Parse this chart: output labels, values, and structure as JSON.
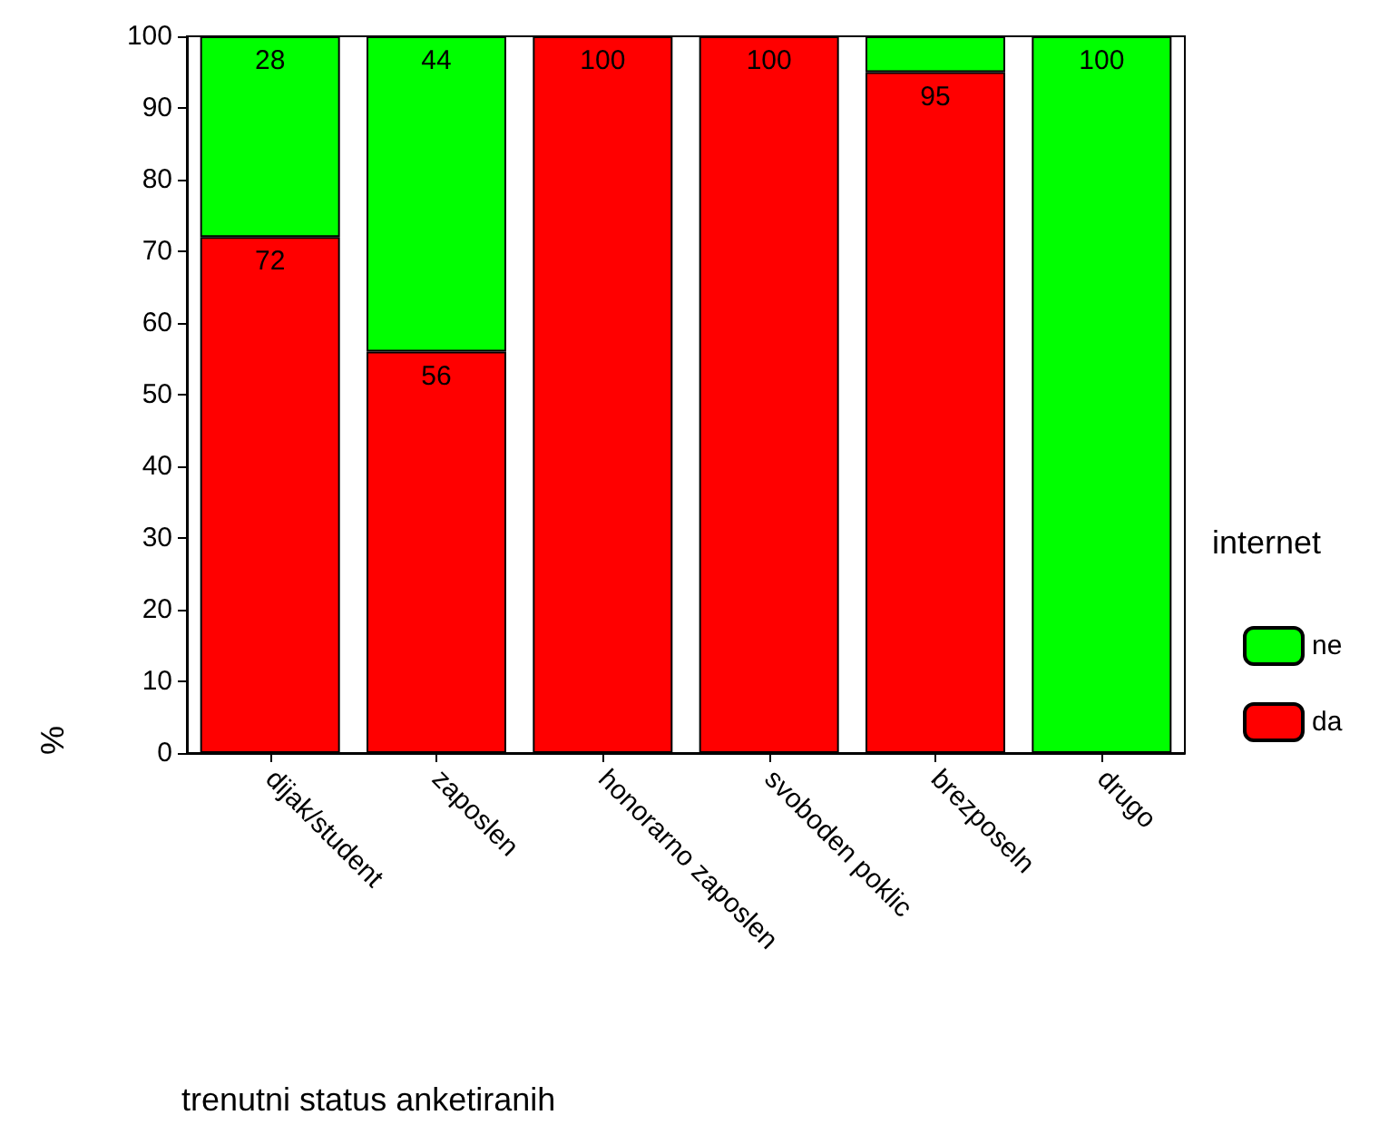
{
  "chart_data": {
    "type": "bar",
    "stacked": true,
    "xlabel": "trenutni status anketiranih",
    "ylabel": "%",
    "legend_title": "internet",
    "legend": "right",
    "categories": [
      "dijak/student",
      "zaposlen",
      "honorarno zaposlen",
      "svoboden poklic",
      "brezposeln",
      "drugo"
    ],
    "series": [
      {
        "name": "da",
        "color": "#ff0000",
        "values": [
          72,
          56,
          100,
          100,
          95,
          0
        ],
        "value_labels": [
          "72",
          "56",
          "100",
          "100",
          "95",
          null
        ]
      },
      {
        "name": "ne",
        "color": "#00ff00",
        "values": [
          28,
          44,
          0,
          0,
          5,
          100
        ],
        "value_labels": [
          "28",
          "44",
          null,
          null,
          null,
          "100"
        ]
      }
    ],
    "ylim": [
      0,
      100
    ],
    "yticks": [
      0,
      10,
      20,
      30,
      40,
      50,
      60,
      70,
      80,
      90,
      100
    ],
    "grid": false
  }
}
